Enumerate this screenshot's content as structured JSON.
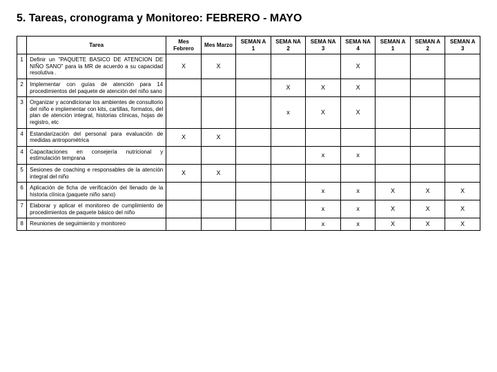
{
  "title": "5. Tareas, cronograma y Monitoreo:   FEBRERO  - MAYO",
  "headers": {
    "num": "",
    "tarea": "Tarea",
    "cols": [
      "Mes Febrero",
      "Mes Marzo",
      "SEMAN A 1",
      "SEMA NA 2",
      "SEMA NA 3",
      "SEMA NA 4",
      "SEMAN A 1",
      "SEMAN A 2",
      "SEMAN A 3"
    ]
  },
  "rows": [
    {
      "n": "1",
      "t": "Definir un \"PAQUETE BASICO DE ATENCION DE NIÑO SANO\" para la MR de acuerdo a su capacidad resolutiva .",
      "m": [
        "X",
        "X",
        "",
        "",
        "",
        "X",
        "",
        "",
        ""
      ]
    },
    {
      "n": "2",
      "t": "Implementar con guías de atención para 14 procedimientos del paquete de atención del niño sano",
      "m": [
        "",
        "",
        "",
        "X",
        "X",
        "X",
        "",
        "",
        ""
      ]
    },
    {
      "n": "3",
      "t": "Organizar y acondicionar los ambientes de consultorio del niño e implementar con kits, cartillas, formatos, del plan de atención integral, historias clínicas, hojas de registro, etc",
      "m": [
        "",
        "",
        "",
        "x",
        "X",
        "X",
        "",
        "",
        ""
      ]
    },
    {
      "n": "4",
      "t": "Estandarización del personal para evaluación de medidas antropométrica",
      "m": [
        "X",
        "X",
        "",
        "",
        "",
        "",
        "",
        "",
        ""
      ]
    },
    {
      "n": "4",
      "t": "Capacitaciones en consejería nutricional y estimulación temprana",
      "m": [
        "",
        "",
        "",
        "",
        "x",
        "x",
        "",
        "",
        ""
      ]
    },
    {
      "n": "5",
      "t": "Sesiones de coaching e responsables de la atención integral del niño",
      "m": [
        "X",
        "X",
        "",
        "",
        "",
        "",
        "",
        "",
        ""
      ]
    },
    {
      "n": "6",
      "t": "Aplicación de ficha de verificación del llenado de la historia clínica (paquete niño sano)",
      "m": [
        "",
        "",
        "",
        "",
        "x",
        "x",
        "X",
        "X",
        "X"
      ]
    },
    {
      "n": "7",
      "t": "Elaborar y aplicar el monitoreo de cumplimiento de procedimientos de paquete básico del niño",
      "m": [
        "",
        "",
        "",
        "",
        "x",
        "x",
        "X",
        "X",
        "X"
      ]
    },
    {
      "n": "8",
      "t": "Reuniones de seguimiento y monitoreo",
      "m": [
        "",
        "",
        "",
        "",
        "x",
        "x",
        "X",
        "X",
        "X"
      ]
    }
  ]
}
